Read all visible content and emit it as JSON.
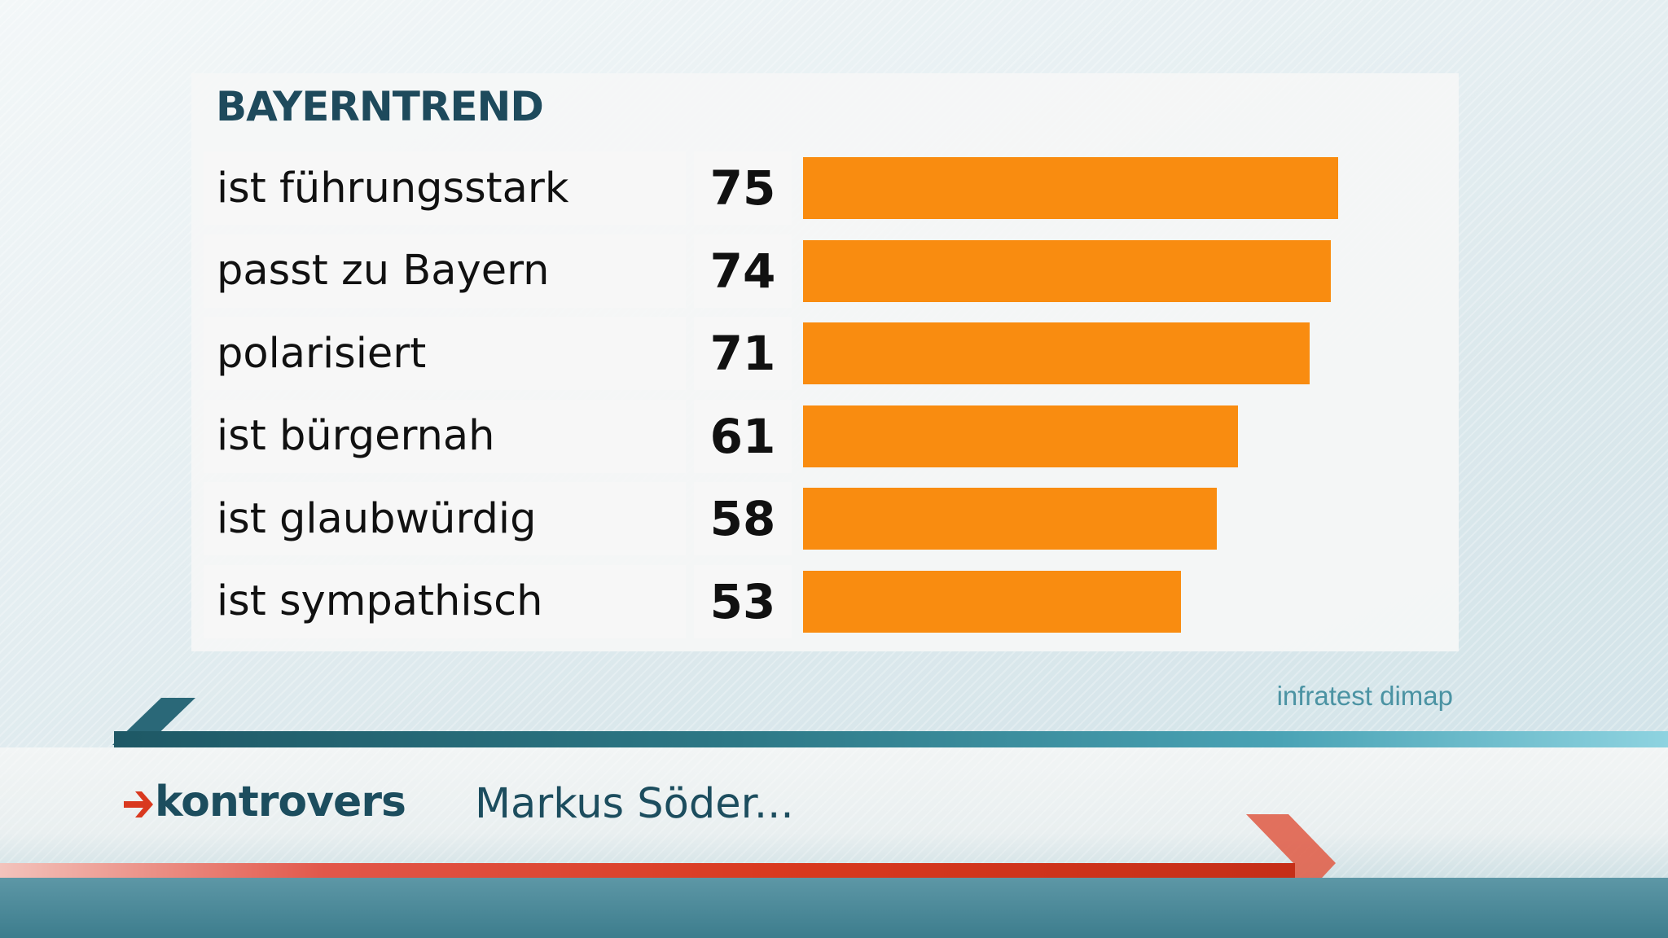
{
  "header": {
    "title": "BAYERNTREND"
  },
  "chart_data": {
    "type": "bar",
    "orientation": "horizontal",
    "title": "BAYERNTREND",
    "categories": [
      "ist führungsstark",
      "passt zu Bayern",
      "polarisiert",
      "ist bürgernah",
      "ist glaubwürdig",
      "ist sympathisch"
    ],
    "values": [
      75,
      74,
      71,
      61,
      58,
      53
    ],
    "value_labels": [
      "75",
      "74",
      "71",
      "61",
      "58",
      "53"
    ],
    "xlim": [
      0,
      100
    ],
    "grid": false,
    "bar_color": "#f98c10"
  },
  "source": "infratest dimap",
  "footer": {
    "brand": "kontrovers",
    "topic": "Markus Söder..."
  },
  "colors": {
    "accent_teal": "#1e4a5c",
    "bar_orange": "#f98c10",
    "brand_red": "#d9391f"
  }
}
